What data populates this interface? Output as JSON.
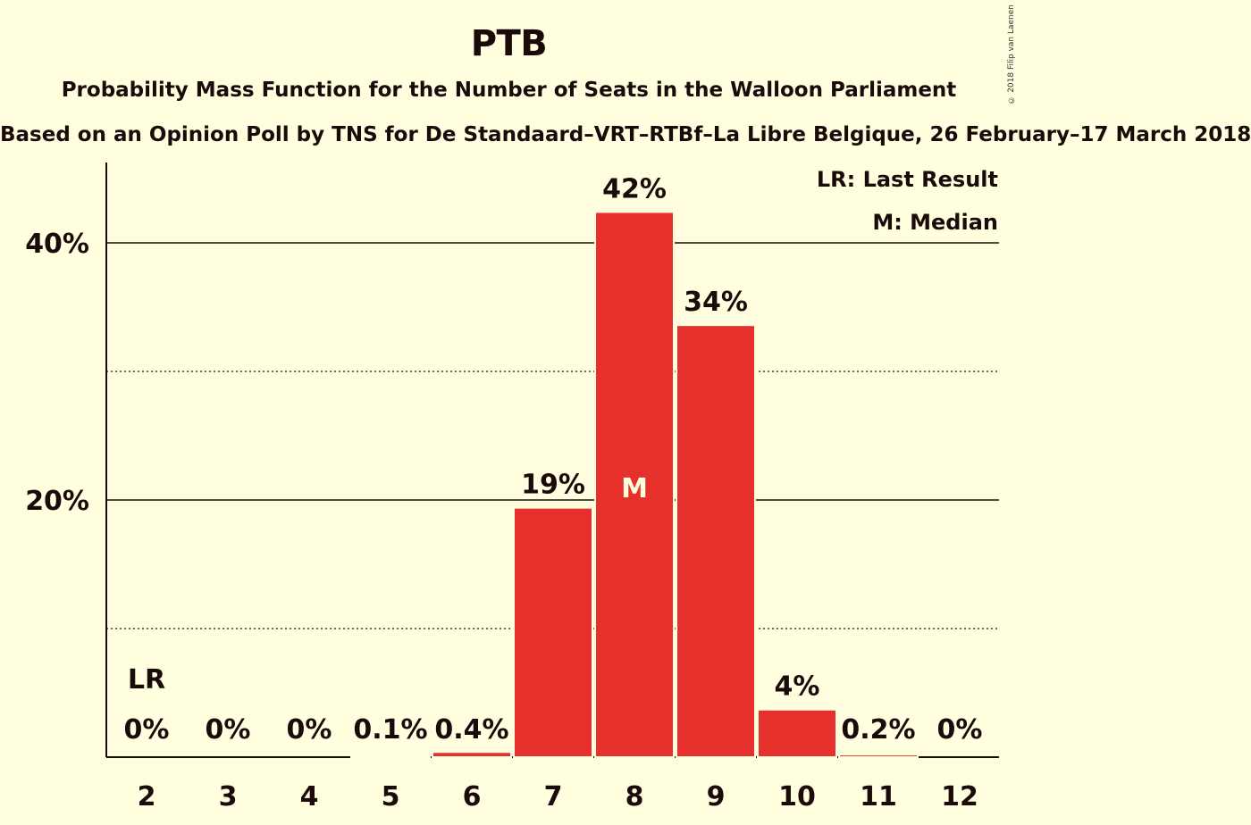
{
  "chart_data": {
    "type": "bar",
    "title": "PTB",
    "subtitle": "Probability Mass Function for the Number of Seats in the Walloon Parliament",
    "source": "Based on an Opinion Poll by TNS for De Standaard–VRT–RTBf–La Libre Belgique, 26 February–17 March 2018",
    "copyright": "© 2018 Filip van Laenen",
    "categories": [
      "2",
      "3",
      "4",
      "5",
      "6",
      "7",
      "8",
      "9",
      "10",
      "11",
      "12"
    ],
    "values": [
      0,
      0,
      0,
      0.1,
      0.4,
      19.4,
      42.4,
      33.6,
      3.7,
      0.2,
      0
    ],
    "data_labels": [
      "0%",
      "0%",
      "0%",
      "0.1%",
      "0.4%",
      "19%",
      "42%",
      "34%",
      "4%",
      "0.2%",
      "0%"
    ],
    "y_ticks": [
      {
        "value": 20,
        "label": "20%"
      },
      {
        "value": 40,
        "label": "40%"
      }
    ],
    "minor_gridlines": [
      10,
      30
    ],
    "ylim": [
      0,
      46
    ],
    "last_result": {
      "category": "2",
      "label": "LR"
    },
    "median": {
      "category": "8",
      "label": "M"
    },
    "legend": {
      "placement": "top-right",
      "items": [
        "LR: Last Result",
        "M: Median"
      ]
    },
    "colors": {
      "bar": "#E5302C",
      "background": "#FFFFE0",
      "text": "#1a0a0a"
    }
  }
}
